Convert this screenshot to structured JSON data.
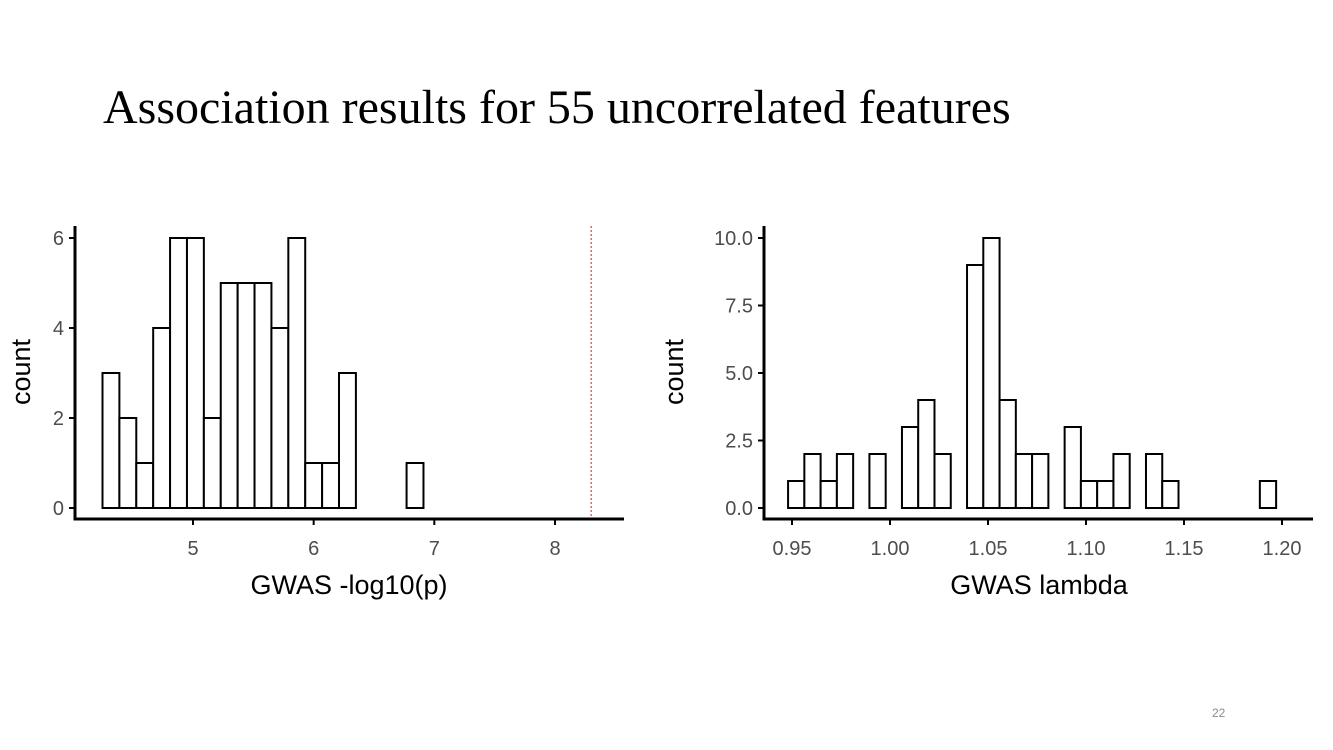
{
  "slide": {
    "title": "Association results for 55 uncorrelated features",
    "page_number": "22"
  },
  "chart_data": [
    {
      "type": "bar",
      "subtype": "histogram",
      "xlabel": "GWAS -log10(p)",
      "ylabel": "count",
      "xlim": [
        4.19,
        8.55
      ],
      "ylim": [
        0,
        6.15
      ],
      "x_ticks": [
        5,
        6,
        7,
        8
      ],
      "x_tick_labels": [
        "5",
        "6",
        "7",
        "8"
      ],
      "y_ticks": [
        0,
        2,
        4,
        6
      ],
      "y_tick_labels": [
        "0",
        "2",
        "4",
        "6"
      ],
      "bin_width": 0.14,
      "bin_start": 4.25,
      "counts": [
        3,
        2,
        1,
        4,
        6,
        6,
        2,
        5,
        5,
        5,
        4,
        6,
        1,
        1,
        3,
        0,
        0,
        0,
        1,
        0,
        0,
        0,
        0,
        0,
        0,
        0,
        0,
        0,
        0,
        0
      ],
      "reference_line": {
        "x": 8.3,
        "color": "#e06666",
        "style": "dotted"
      },
      "bar_fill": "#ffffff",
      "bar_stroke": "#000000",
      "grid": false
    },
    {
      "type": "bar",
      "subtype": "histogram",
      "xlabel": "GWAS lambda",
      "ylabel": "count",
      "xlim": [
        0.942,
        1.202
      ],
      "ylim": [
        0,
        10.3
      ],
      "x_ticks": [
        0.95,
        1.0,
        1.05,
        1.1,
        1.15,
        1.2
      ],
      "x_tick_labels": [
        "0.95",
        "1.00",
        "1.05",
        "1.10",
        "1.15",
        "1.20"
      ],
      "y_ticks": [
        0,
        2.5,
        5,
        7.5,
        10
      ],
      "y_tick_labels": [
        "0.0",
        "2.5",
        "5.0",
        "7.5",
        "10.0"
      ],
      "bin_width": 0.0083,
      "bin_start": 0.948,
      "counts": [
        1,
        2,
        1,
        2,
        0,
        2,
        0,
        3,
        4,
        2,
        0,
        9,
        10,
        4,
        2,
        2,
        0,
        3,
        1,
        1,
        2,
        0,
        2,
        1,
        0,
        0,
        0,
        0,
        0,
        1
      ],
      "bar_fill": "#ffffff",
      "bar_stroke": "#000000",
      "grid": false
    }
  ]
}
